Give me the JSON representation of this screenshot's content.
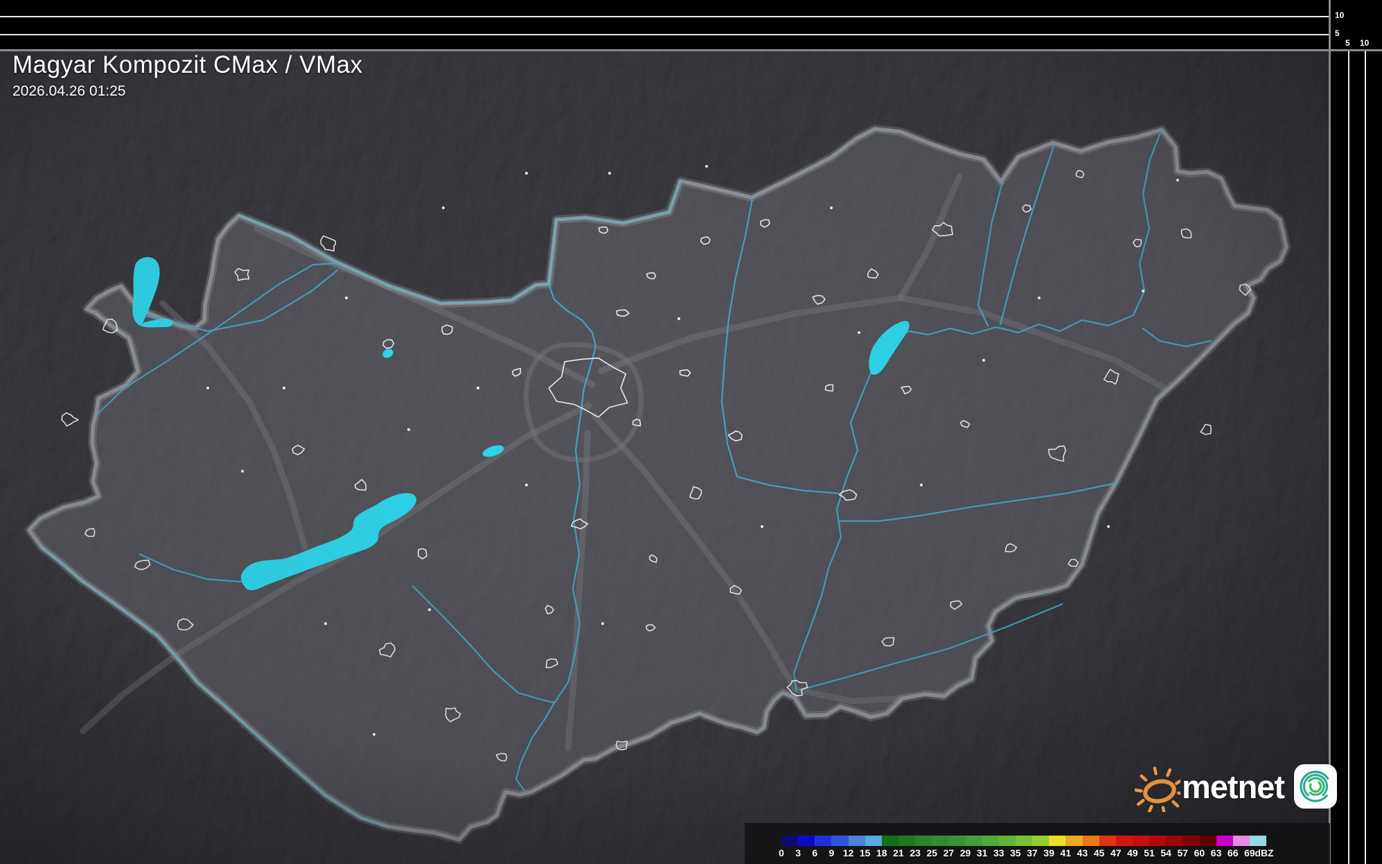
{
  "header": {
    "title": "Magyar Kompozit CMax / VMax",
    "timestamp": "2026.04.26 01:25"
  },
  "scale_panels": {
    "top_axis": {
      "tick_10": "10",
      "tick_5": "5"
    },
    "right_axis": {
      "tick_5": "5",
      "tick_10": "10"
    }
  },
  "colorbar": {
    "unit": "dBZ",
    "tick_labels": [
      "0",
      "3",
      "6",
      "9",
      "12",
      "15",
      "18",
      "21",
      "23",
      "25",
      "27",
      "29",
      "31",
      "33",
      "35",
      "37",
      "39",
      "41",
      "43",
      "45",
      "47",
      "49",
      "51",
      "54",
      "57",
      "60",
      "63",
      "66",
      "69"
    ],
    "segment_colors": [
      "#0b0b78",
      "#0b0bc6",
      "#2130dc",
      "#2f55dc",
      "#4b82d8",
      "#55aadf",
      "#156f15",
      "#1e7a1e",
      "#27842a",
      "#2f8e2f",
      "#379637",
      "#41a03b",
      "#50aa39",
      "#62b436",
      "#78c233",
      "#92d030",
      "#eede2a",
      "#f2a81f",
      "#e87a18",
      "#de3312",
      "#d61511",
      "#c90e0e",
      "#b20a0a",
      "#9b0606",
      "#830303",
      "#5e0101",
      "#cb00cb",
      "#e88ce3",
      "#8edbe6"
    ]
  },
  "map_colors": {
    "outside_terrain": "#35353b",
    "inside_terrain": "#4b4b52",
    "country_border": "#8f9498",
    "river": "#49a7c6",
    "lake": "#30d7ec",
    "city_outline": "#f4f4f4",
    "motorway": "#7d7d84"
  },
  "logo": {
    "text": "metnet"
  }
}
